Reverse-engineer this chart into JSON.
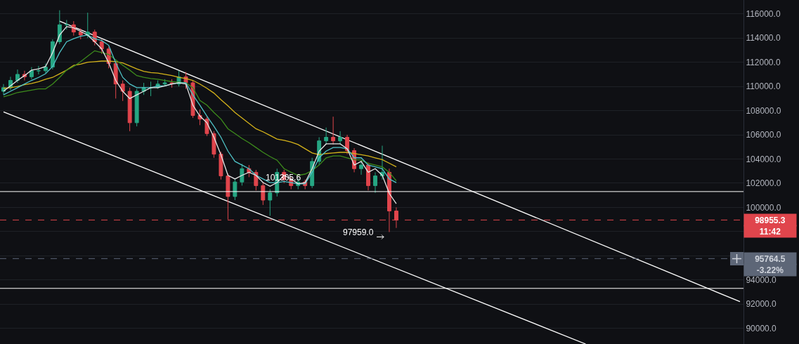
{
  "chart_data": {
    "type": "candlestick",
    "tick_labels": "y",
    "grid": "y",
    "categories": [
      null,
      null,
      null,
      null,
      null,
      null,
      null,
      null,
      null,
      null,
      null,
      null,
      null,
      null,
      null,
      null,
      null,
      null,
      null,
      null,
      null,
      null,
      null,
      null,
      null,
      null,
      null,
      null,
      null,
      null,
      null,
      null,
      null,
      null,
      null,
      null,
      null,
      null,
      null,
      null,
      null,
      null,
      null,
      null,
      null,
      null,
      null,
      null,
      null,
      null,
      null,
      null,
      null,
      null,
      null,
      null,
      null,
      null,
      null,
      null,
      null,
      null,
      null,
      null,
      null,
      null,
      null,
      null,
      null,
      null,
      null,
      null,
      null,
      null,
      null,
      null,
      null,
      null,
      null,
      null,
      null,
      null,
      null,
      null,
      null,
      null,
      null,
      null,
      null,
      null,
      null,
      null,
      null,
      null,
      null,
      null,
      null,
      null,
      null,
      null,
      null,
      null,
      null,
      null,
      null,
      null
    ],
    "ohlc": [
      [
        109600,
        110200,
        109300,
        109900
      ],
      [
        109900,
        110800,
        109700,
        110500
      ],
      [
        110500,
        111400,
        110300,
        111000
      ],
      [
        111000,
        111300,
        110500,
        110800
      ],
      [
        110800,
        111600,
        110600,
        111300
      ],
      [
        111300,
        111700,
        111000,
        111300
      ],
      [
        111300,
        111900,
        111100,
        111600
      ],
      [
        111600,
        113900,
        111400,
        113700
      ],
      [
        113700,
        116300,
        113500,
        115100
      ],
      [
        115100,
        115500,
        114700,
        115100
      ],
      [
        115100,
        115400,
        114200,
        114500
      ],
      [
        114500,
        114800,
        113900,
        114250
      ],
      [
        114250,
        116100,
        114000,
        114500
      ],
      [
        114500,
        114700,
        113400,
        113700
      ],
      [
        113700,
        113900,
        112700,
        113100
      ],
      [
        113100,
        113300,
        111500,
        111900
      ],
      [
        111900,
        112100,
        109000,
        110200
      ],
      [
        110200,
        110500,
        108800,
        109600
      ],
      [
        109600,
        109900,
        106300,
        107000
      ],
      [
        107000,
        109800,
        106700,
        109600
      ],
      [
        109600,
        110300,
        109300,
        109900
      ],
      [
        109900,
        110400,
        109200,
        109900
      ],
      [
        109900,
        110500,
        109800,
        110200
      ],
      [
        110200,
        110600,
        110000,
        110300
      ],
      [
        110300,
        110600,
        109900,
        110200
      ],
      [
        110200,
        111300,
        110000,
        110800
      ],
      [
        110800,
        111200,
        109800,
        110300
      ],
      [
        110300,
        110500,
        107400,
        107600
      ],
      [
        107600,
        108100,
        106800,
        107300
      ],
      [
        107300,
        107500,
        105900,
        106100
      ],
      [
        106100,
        106300,
        104100,
        104400
      ],
      [
        104400,
        104600,
        102300,
        102600
      ],
      [
        102600,
        102800,
        99000,
        100900
      ],
      [
        100900,
        102400,
        100600,
        102100
      ],
      [
        102100,
        103600,
        101800,
        103200
      ],
      [
        103200,
        103500,
        102500,
        102900
      ],
      [
        102900,
        103100,
        101400,
        101800
      ],
      [
        101800,
        102100,
        100200,
        100600
      ],
      [
        100600,
        101500,
        99300,
        101200
      ],
      [
        101200,
        103200,
        100900,
        102900
      ],
      [
        102900,
        103100,
        102000,
        102300
      ],
      [
        102300,
        102500,
        101500,
        101800
      ],
      [
        101800,
        102400,
        101500,
        102100
      ],
      [
        102100,
        102300,
        101500,
        101800
      ],
      [
        101800,
        104100,
        101600,
        103800
      ],
      [
        103800,
        105800,
        103500,
        105500
      ],
      [
        105500,
        106600,
        105200,
        105800
      ],
      [
        105800,
        107500,
        105200,
        105500
      ],
      [
        105500,
        106300,
        105200,
        105800
      ],
      [
        105800,
        106000,
        104400,
        104700
      ],
      [
        104700,
        104900,
        102900,
        103200
      ],
      [
        103200,
        103800,
        102700,
        103500
      ],
      [
        103500,
        103700,
        101400,
        101800
      ],
      [
        101800,
        102900,
        101200,
        102600
      ],
      [
        102600,
        105100,
        102300,
        102900
      ],
      [
        102900,
        103200,
        97959.0,
        99700
      ],
      [
        99700,
        100000,
        98300,
        98955.3
      ],
      null,
      null,
      null,
      null,
      null,
      null,
      null,
      null,
      null,
      null,
      null,
      null,
      null,
      null,
      null,
      null,
      null,
      null,
      null,
      null,
      null,
      null,
      null,
      null,
      null,
      null,
      null,
      null,
      null,
      null,
      null,
      null,
      null,
      null,
      null,
      null,
      null,
      null,
      null,
      null,
      null,
      null,
      null,
      null,
      null,
      null,
      null,
      null,
      null
    ],
    "colors": [
      "#26a683",
      "#26a683",
      "#26a683",
      "#e0454c",
      "#26a683",
      "#26a683",
      "#26a683",
      "#26a683",
      "#26a683",
      "#26a683",
      "#e0454c",
      "#e0454c",
      "#26a683",
      "#e0454c",
      "#e0454c",
      "#e0454c",
      "#e0454c",
      "#e0454c",
      "#e0454c",
      "#26a683",
      "#26a683",
      "#26a683",
      "#26a683",
      "#26a683",
      "#e0454c",
      "#26a683",
      "#e0454c",
      "#e0454c",
      "#e0454c",
      "#e0454c",
      "#e0454c",
      "#e0454c",
      "#e0454c",
      "#26a683",
      "#26a683",
      "#e0454c",
      "#e0454c",
      "#e0454c",
      "#26a683",
      "#26a683",
      "#e0454c",
      "#e0454c",
      "#26a683",
      "#e0454c",
      "#26a683",
      "#26a683",
      "#26a683",
      "#e0454c",
      "#26a683",
      "#e0454c",
      "#e0454c",
      "#26a683",
      "#e0454c",
      "#26a683",
      "#26a683",
      "#e0454c",
      "#e0454c",
      null,
      null,
      null,
      null,
      null,
      null,
      null,
      null,
      null,
      null,
      null,
      null,
      null,
      null,
      null,
      null,
      null,
      null,
      null,
      null,
      null,
      null,
      null,
      null,
      null,
      null,
      null,
      null,
      null,
      null,
      null,
      null,
      null,
      null,
      null,
      null,
      null,
      null,
      null,
      null,
      null,
      null,
      null,
      null,
      null,
      null,
      null,
      null,
      null
    ],
    "series": [
      {
        "type": "line",
        "color": "#d4b21a",
        "values": [
          109850,
          109900,
          110000,
          110150,
          110250,
          110400,
          110600,
          110750,
          111050,
          111350,
          111750,
          111850,
          112000,
          112050,
          112100,
          112100,
          112050,
          111950,
          111700,
          111450,
          111250,
          111150,
          111100,
          111000,
          110900,
          110750,
          110650,
          110500,
          110200,
          109850,
          109450,
          108900,
          108400,
          107850,
          107400,
          106950,
          106500,
          106250,
          105950,
          105650,
          105550,
          105400,
          105200,
          104850,
          104500,
          104350,
          104450,
          104500,
          104550,
          104550,
          104450,
          104350,
          104250,
          104100,
          103950,
          103650,
          103350,
          null,
          null,
          null,
          null,
          null,
          null,
          null,
          null,
          null,
          null,
          null,
          null,
          null,
          null,
          null,
          null,
          null,
          null,
          null,
          null,
          null,
          null,
          null,
          null,
          null,
          null,
          null,
          null,
          null,
          null,
          null,
          null,
          null,
          null,
          null,
          null,
          null,
          null,
          null,
          null,
          null,
          null,
          null,
          null,
          null,
          null,
          null,
          null,
          null
        ]
      },
      {
        "type": "line",
        "color": "#3d8b1c",
        "values": [
          109150,
          109300,
          109500,
          109600,
          109700,
          109800,
          109800,
          110200,
          110750,
          111350,
          111650,
          112050,
          112500,
          112950,
          112800,
          112650,
          112200,
          111750,
          111350,
          110900,
          110750,
          110650,
          110600,
          110500,
          110400,
          110350,
          110300,
          109900,
          108850,
          108450,
          107850,
          107300,
          106500,
          106100,
          105700,
          105350,
          104950,
          104550,
          104200,
          103900,
          103200,
          102900,
          102650,
          102750,
          103050,
          103500,
          104100,
          104250,
          104250,
          104100,
          103950,
          103900,
          103650,
          103500,
          103350,
          102900,
          102200,
          null,
          null,
          null,
          null,
          null,
          null,
          null,
          null,
          null,
          null,
          null,
          null,
          null,
          null,
          null,
          null,
          null,
          null,
          null,
          null,
          null,
          null,
          null,
          null,
          null,
          null,
          null,
          null,
          null,
          null,
          null,
          null,
          null,
          null,
          null,
          null,
          null,
          null,
          null,
          null,
          null,
          null,
          null,
          null,
          null,
          null,
          null,
          null,
          null
        ]
      },
      {
        "type": "line",
        "color": "#4fc3c7",
        "values": [
          109300,
          109600,
          109900,
          110200,
          110500,
          110750,
          111050,
          111650,
          112800,
          113700,
          113950,
          114150,
          114250,
          113950,
          113800,
          113400,
          111950,
          110750,
          110200,
          109900,
          109900,
          109900,
          110050,
          110050,
          110200,
          110300,
          110300,
          109300,
          108450,
          107550,
          106700,
          105800,
          104650,
          103800,
          103500,
          103200,
          102650,
          102350,
          102050,
          102050,
          102150,
          102050,
          101950,
          101950,
          102900,
          104100,
          104650,
          104950,
          104950,
          104850,
          104100,
          104100,
          103500,
          103350,
          103200,
          102350,
          102050,
          null,
          null,
          null,
          null,
          null,
          null,
          null,
          null,
          null,
          null,
          null,
          null,
          null,
          null,
          null,
          null,
          null,
          null,
          null,
          null,
          null,
          null,
          null,
          null,
          null,
          null,
          null,
          null,
          null,
          null,
          null,
          null,
          null,
          null,
          null,
          null,
          null,
          null,
          null,
          null,
          null,
          null,
          null,
          null,
          null,
          null,
          null,
          null,
          null
        ]
      },
      {
        "type": "line",
        "color": "#e6e6e6",
        "values": [
          109600,
          110050,
          110500,
          110900,
          111350,
          111450,
          111650,
          112800,
          114250,
          114950,
          114850,
          114550,
          114250,
          113700,
          113100,
          111950,
          110500,
          109600,
          109000,
          109300,
          109600,
          109900,
          109900,
          110050,
          110200,
          110300,
          110200,
          108450,
          107550,
          107000,
          105800,
          104350,
          102650,
          102350,
          102650,
          102900,
          102650,
          102050,
          101750,
          102050,
          102650,
          102350,
          101950,
          102050,
          103200,
          104650,
          105250,
          105250,
          105250,
          104850,
          103500,
          103800,
          102900,
          103200,
          102650,
          101150,
          100300,
          null,
          null,
          null,
          null,
          null,
          null,
          null,
          null,
          null,
          null,
          null,
          null,
          null,
          null,
          null,
          null,
          null,
          null,
          null,
          null,
          null,
          null,
          null,
          null,
          null,
          null,
          null,
          null,
          null,
          null,
          null,
          null,
          null,
          null,
          null,
          null,
          null,
          null,
          null,
          null,
          null,
          null,
          null,
          null,
          null,
          null,
          null,
          null,
          null
        ]
      },
      {
        "type": "line",
        "color": "#ffffff",
        "values": [
          null,
          null,
          null,
          null,
          null,
          null,
          null,
          null,
          115400,
          null,
          null,
          null,
          null,
          null,
          null,
          null,
          null,
          null,
          null,
          null,
          null,
          null,
          null,
          null,
          null,
          null,
          null,
          null,
          null,
          null,
          null,
          null,
          null,
          null,
          null,
          null,
          null,
          null,
          null,
          null,
          null,
          null,
          null,
          null,
          null,
          null,
          null,
          null,
          null,
          null,
          null,
          null,
          null,
          null,
          null,
          null,
          null,
          null,
          null,
          null,
          null,
          null,
          null,
          null,
          null,
          null,
          null,
          null,
          null,
          null,
          null,
          null,
          null,
          null,
          null,
          null,
          null,
          null,
          null,
          null,
          null,
          null,
          null,
          null,
          null,
          null,
          null,
          null,
          null,
          null,
          null,
          null,
          null,
          null,
          null,
          null,
          null,
          null,
          null,
          null,
          null,
          null,
          null,
          null,
          null,
          92200
        ]
      },
      {
        "type": "line",
        "color": "#ffffff",
        "values": [
          107900,
          null,
          null,
          null,
          null,
          null,
          null,
          null,
          null,
          null,
          null,
          null,
          null,
          null,
          null,
          null,
          null,
          null,
          null,
          null,
          null,
          null,
          null,
          null,
          null,
          null,
          null,
          null,
          null,
          null,
          null,
          null,
          null,
          null,
          null,
          null,
          null,
          null,
          null,
          null,
          null,
          null,
          null,
          null,
          null,
          null,
          null,
          null,
          null,
          null,
          null,
          null,
          null,
          null,
          null,
          null,
          null,
          null,
          null,
          null,
          null,
          null,
          null,
          null,
          null,
          null,
          null,
          null,
          null,
          null,
          null,
          null,
          null,
          null,
          null,
          null,
          null,
          null,
          null,
          null,
          null,
          null,
          null,
          88700,
          null,
          null,
          null,
          null,
          null,
          null,
          null,
          null,
          null,
          null,
          null,
          null,
          null,
          null,
          null,
          null,
          null,
          null,
          null,
          null,
          null,
          null
        ]
      }
    ],
    "ylim": [
      88700,
      117150
    ],
    "yticks": [
      {
        "value": 90000,
        "label": "90000.0"
      },
      {
        "value": 92000,
        "label": "92000.0"
      },
      {
        "value": 94000,
        "label": "94000.0"
      },
      {
        "value": 96000,
        "label": null
      },
      {
        "value": 98000,
        "label": null
      },
      {
        "value": 100000,
        "label": "100000.0"
      },
      {
        "value": 102000,
        "label": "102000.0"
      },
      {
        "value": 104000,
        "label": "104000.0"
      },
      {
        "value": 106000,
        "label": "106000.0"
      },
      {
        "value": 108000,
        "label": "108000.0"
      },
      {
        "value": 110000,
        "label": "110000.0"
      },
      {
        "value": 112000,
        "label": "112000.0"
      },
      {
        "value": 114000,
        "label": "114000.0"
      },
      {
        "value": 116000,
        "label": "116000.0"
      }
    ],
    "ref_lines": [
      {
        "axis": "y",
        "value": 101305.6,
        "label": "101305.6",
        "color": "#ffffff",
        "line_style": "solid"
      },
      {
        "axis": "y",
        "value": 93300,
        "color": "#ffffff",
        "line_style": "solid"
      },
      {
        "axis": "y",
        "value": 98955.3,
        "label": "98955.3",
        "color": "#e0454c",
        "line_style": "dashed"
      },
      {
        "axis": "y",
        "value": 95764.5,
        "label": "95764.5",
        "color": "#5d6677",
        "line_style": "dashed"
      }
    ],
    "annotations": [
      "11:42",
      "-3.22%",
      "97959.0"
    ]
  }
}
